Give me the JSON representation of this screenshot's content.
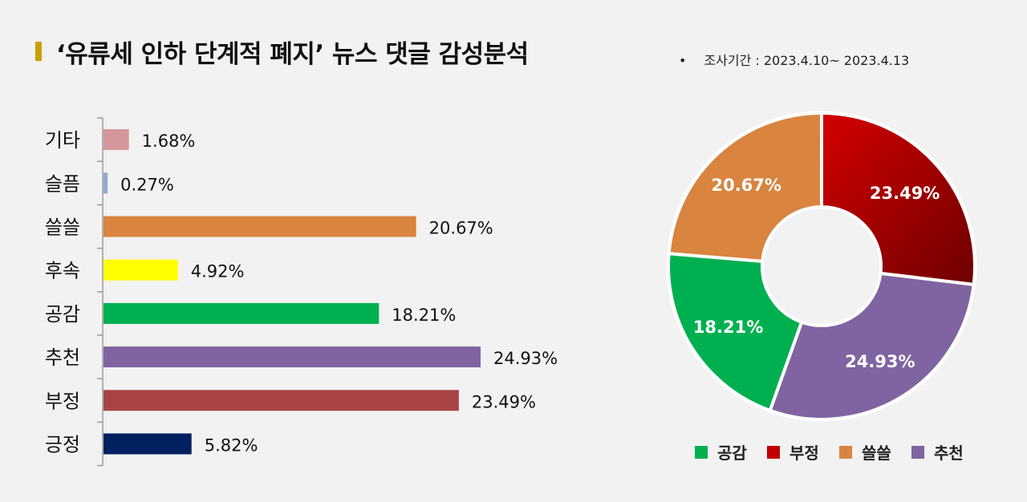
{
  "header": {
    "title": "‘유류세 인하 단계적 폐지’ 뉴스 댓글 감성분석",
    "period_bullet": "•",
    "period": "조사기간 : 2023.4.10~  2023.4.13"
  },
  "chart_data": [
    {
      "type": "bar",
      "orientation": "horizontal",
      "categories": [
        "기타",
        "슬픔",
        "쓸쓸",
        "후속",
        "공감",
        "추천",
        "부정",
        "긍정"
      ],
      "values": [
        1.68,
        0.27,
        20.67,
        4.92,
        18.21,
        24.93,
        23.49,
        5.82
      ],
      "value_labels": [
        "1.68%",
        "0.27%",
        "20.67%",
        "4.92%",
        "18.21%",
        "24.93%",
        "23.49%",
        "5.82%"
      ],
      "colors": [
        "#d4969a",
        "#8fa8d4",
        "#d9843f",
        "#ffff00",
        "#00b050",
        "#8064a2",
        "#a84444",
        "#002060"
      ],
      "xlim": [
        0,
        30
      ]
    },
    {
      "type": "pie",
      "donut": true,
      "categories": [
        "부정",
        "추천",
        "공감",
        "쓸쓸"
      ],
      "values": [
        23.49,
        24.93,
        18.21,
        20.67
      ],
      "value_labels": [
        "23.49%",
        "24.93%",
        "18.21%",
        "20.67%"
      ],
      "colors": [
        "#c00000",
        "#8064a2",
        "#00b050",
        "#d9843f"
      ],
      "legend": {
        "position": "bottom",
        "items": [
          {
            "label": "공감",
            "color": "#00b050"
          },
          {
            "label": "부정",
            "color": "#c00000"
          },
          {
            "label": "쓸쓸",
            "color": "#d9843f"
          },
          {
            "label": "추천",
            "color": "#8064a2"
          }
        ]
      }
    }
  ]
}
